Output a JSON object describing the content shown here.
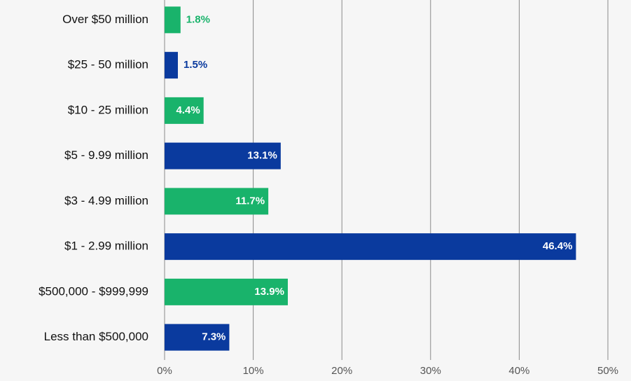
{
  "chart_data": {
    "type": "hbar",
    "categories": [
      "Over $50 million",
      "$25 - 50 million",
      "$10 - 25 million",
      "$5 - 9.99 million",
      "$3 - 4.99 million",
      "$1 - 2.99 million",
      "$500,000 - $999,999",
      "Less than $500,000"
    ],
    "values": [
      1.8,
      1.5,
      4.4,
      13.1,
      11.7,
      46.4,
      13.9,
      7.3
    ],
    "value_labels": [
      "1.8%",
      "1.5%",
      "4.4%",
      "13.1%",
      "11.7%",
      "46.4%",
      "13.9%",
      "7.3%"
    ],
    "colors": [
      "#19b36b",
      "#0a3a9e",
      "#19b36b",
      "#0a3a9e",
      "#19b36b",
      "#0a3a9e",
      "#19b36b",
      "#0a3a9e"
    ],
    "xlim": [
      0,
      50
    ],
    "xticks": [
      {
        "value": 0,
        "label": "0%"
      },
      {
        "value": 10,
        "label": "10%"
      },
      {
        "value": 20,
        "label": "20%"
      },
      {
        "value": 30,
        "label": "30%"
      },
      {
        "value": 40,
        "label": "40%"
      },
      {
        "value": 50,
        "label": "50%"
      }
    ],
    "grid": true
  }
}
